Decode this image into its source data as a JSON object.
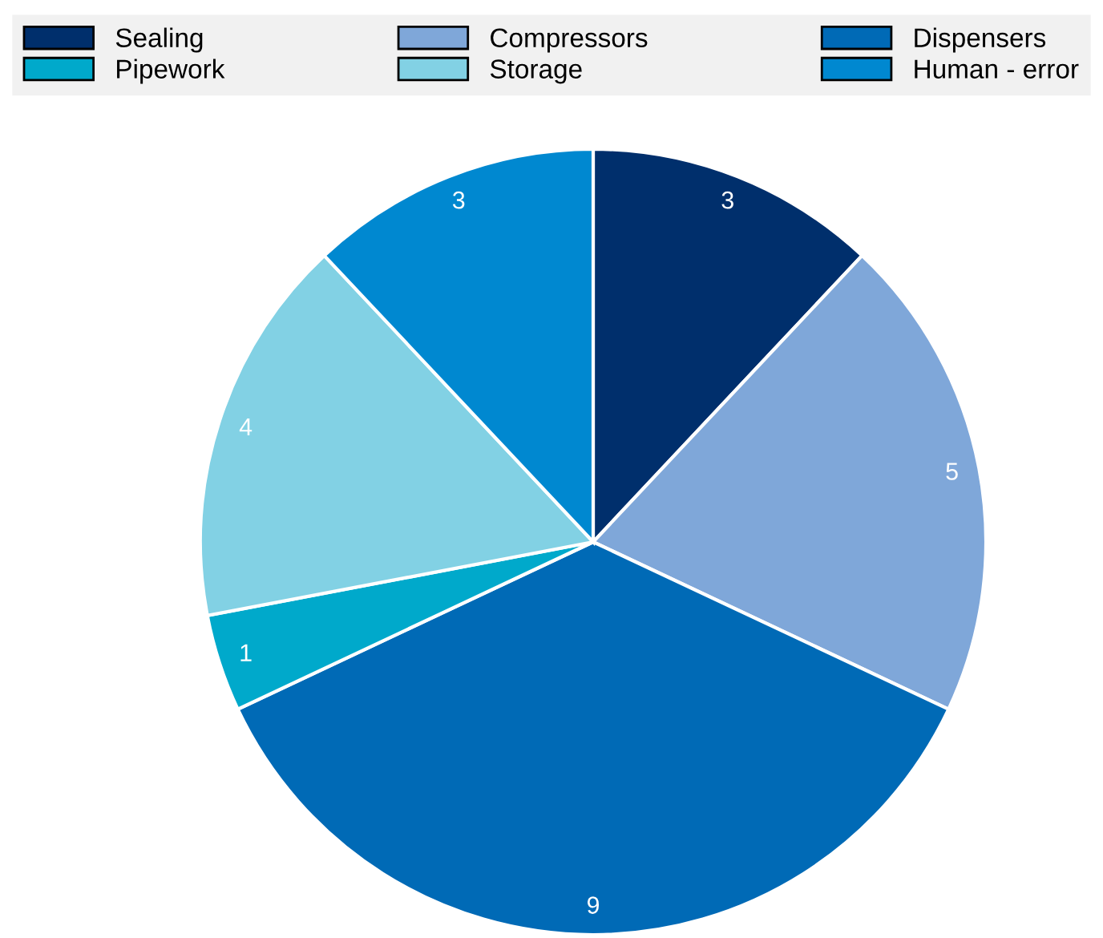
{
  "chart_data": {
    "type": "pie",
    "categories": [
      "Sealing",
      "Compressors",
      "Dispensers",
      "Pipework",
      "Storage",
      "Human - error"
    ],
    "values": [
      3,
      5,
      9,
      1,
      4,
      3
    ],
    "colors": [
      "#002f6c",
      "#7fa7d9",
      "#006ab6",
      "#00a9cb",
      "#82d1e4",
      "#0088d0"
    ],
    "data_labels": true,
    "legend": "top"
  }
}
